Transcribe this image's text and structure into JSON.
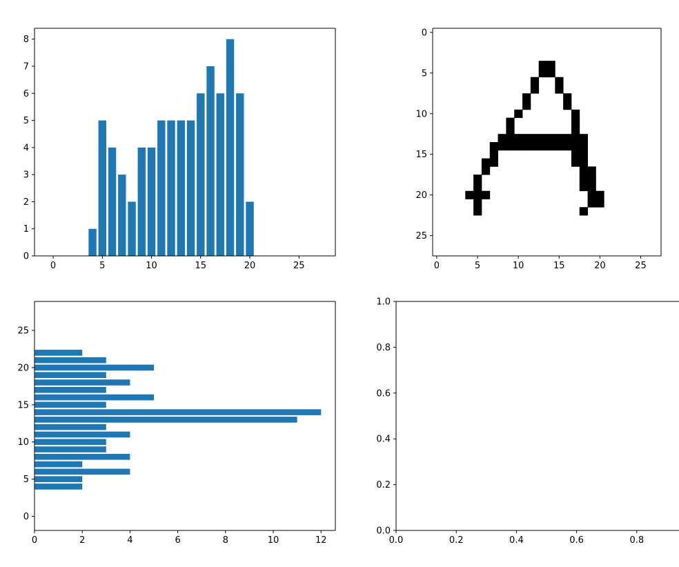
{
  "colors": {
    "bar": "#1f77b4",
    "pixel_on": "#000000",
    "pixel_off": "#ffffff",
    "axes": "#000000"
  },
  "chart_data": [
    {
      "type": "bar",
      "x": [
        4,
        5,
        6,
        7,
        8,
        9,
        10,
        11,
        12,
        13,
        14,
        15,
        16,
        17,
        18,
        19,
        20
      ],
      "values": [
        1,
        5,
        4,
        3,
        2,
        4,
        4,
        5,
        5,
        5,
        5,
        6,
        7,
        6,
        8,
        6,
        2
      ],
      "xlim": [
        -1.9,
        28.7
      ],
      "ylim": [
        0,
        8.4
      ],
      "xticks": [
        0,
        5,
        10,
        15,
        20,
        25
      ],
      "yticks": [
        0,
        1,
        2,
        3,
        4,
        5,
        6,
        7,
        8
      ],
      "title": "",
      "xlabel": "",
      "ylabel": ""
    },
    {
      "type": "heatmap",
      "colormap": "binary",
      "shape": [
        28,
        28
      ],
      "rows_on": [
        [],
        [],
        [],
        [],
        [
          13,
          14
        ],
        [
          13,
          14
        ],
        [
          12,
          15
        ],
        [
          12,
          15
        ],
        [
          11,
          16
        ],
        [
          11,
          16
        ],
        [
          10,
          17
        ],
        [
          9,
          17
        ],
        [
          9,
          17
        ],
        [
          8,
          9,
          10,
          11,
          12,
          13,
          14,
          15,
          16,
          17,
          18
        ],
        [
          7,
          8,
          9,
          10,
          11,
          12,
          13,
          14,
          15,
          16,
          17,
          18
        ],
        [
          7,
          17,
          18
        ],
        [
          6,
          7,
          17,
          18
        ],
        [
          6,
          18,
          19
        ],
        [
          5,
          18,
          19
        ],
        [
          5,
          18,
          19
        ],
        [
          4,
          5,
          6,
          19,
          20
        ],
        [
          5,
          19,
          20
        ],
        [
          5,
          18
        ],
        [],
        [],
        [],
        [],
        []
      ],
      "xticks": [
        0,
        5,
        10,
        15,
        20,
        25
      ],
      "yticks": [
        0,
        5,
        10,
        15,
        20,
        25
      ]
    },
    {
      "type": "barh",
      "y": [
        4,
        5,
        6,
        7,
        8,
        9,
        10,
        11,
        12,
        13,
        14,
        15,
        16,
        17,
        18,
        19,
        20,
        21,
        22
      ],
      "values": [
        2,
        2,
        4,
        2,
        4,
        3,
        3,
        4,
        3,
        11,
        12,
        3,
        5,
        3,
        4,
        3,
        5,
        3,
        2
      ],
      "xlim": [
        0,
        12.6
      ],
      "ylim": [
        -1.9,
        28.9
      ],
      "xticks": [
        0,
        2,
        4,
        6,
        8,
        10,
        12
      ],
      "yticks": [
        0,
        5,
        10,
        15,
        20,
        25
      ],
      "title": "",
      "xlabel": "",
      "ylabel": ""
    },
    {
      "type": "empty",
      "xlim": [
        0,
        1
      ],
      "ylim": [
        0,
        1
      ],
      "xtick_labels": [
        "0.0",
        "0.2",
        "0.4",
        "0.6",
        "0.8"
      ],
      "ytick_labels": [
        "0.0",
        "0.2",
        "0.4",
        "0.6",
        "0.8",
        "1.0"
      ]
    }
  ]
}
